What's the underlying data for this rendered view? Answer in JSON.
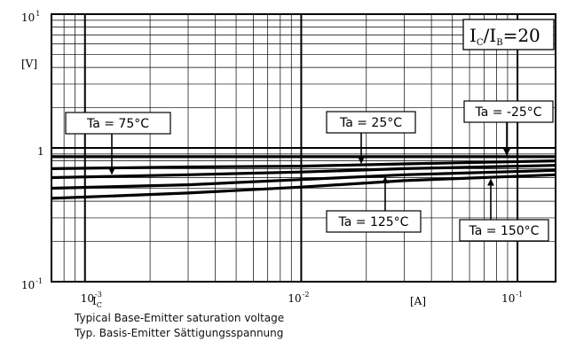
{
  "chart_data": {
    "type": "line",
    "x_scale": "log",
    "y_scale": "log",
    "xlim": [
      0.0007,
      0.15
    ],
    "ylim": [
      0.1,
      10
    ],
    "grid": true,
    "x_ticks": [
      {
        "value": 0.001,
        "base": "10",
        "exp": "-3"
      },
      {
        "value": 0.01,
        "base": "10",
        "exp": "-2"
      },
      {
        "value": 0.1,
        "base": "10",
        "exp": "-1"
      }
    ],
    "y_ticks": [
      {
        "value": 10,
        "base": "10",
        "exp": "1"
      },
      {
        "value": 1,
        "base": "1",
        "exp": ""
      },
      {
        "value": 0.1,
        "base": "10",
        "exp": "-1"
      }
    ],
    "xlabel_symbol": "I",
    "xlabel_sub": "C",
    "xlabel_unit": "[A]",
    "ylabel_unit": "[V]",
    "condition": {
      "a": "I",
      "a_sub": "C",
      "sep": "/",
      "b": "I",
      "b_sub": "B",
      "rest": "=20"
    },
    "series": [
      {
        "name": "Ta = -25°C",
        "x": [
          0.0007,
          0.003,
          0.01,
          0.03,
          0.15
        ],
        "y": [
          0.86,
          0.86,
          0.86,
          0.86,
          0.86
        ]
      },
      {
        "name": "Ta = 25°C",
        "x": [
          0.0007,
          0.003,
          0.01,
          0.03,
          0.15
        ],
        "y": [
          0.7,
          0.72,
          0.73,
          0.76,
          0.8
        ]
      },
      {
        "name": "Ta = 75°C",
        "x": [
          0.0007,
          0.003,
          0.01,
          0.03,
          0.15
        ],
        "y": [
          0.6,
          0.63,
          0.66,
          0.7,
          0.74
        ]
      },
      {
        "name": "Ta = 125°C",
        "x": [
          0.0007,
          0.003,
          0.01,
          0.03,
          0.15
        ],
        "y": [
          0.5,
          0.53,
          0.58,
          0.63,
          0.68
        ]
      },
      {
        "name": "Ta = 150°C",
        "x": [
          0.0007,
          0.003,
          0.01,
          0.03,
          0.15
        ],
        "y": [
          0.42,
          0.46,
          0.51,
          0.57,
          0.63
        ]
      }
    ],
    "annotations": [
      {
        "text": "Ta = 75°C",
        "series": 2
      },
      {
        "text": "Ta = 25°C",
        "series": 1
      },
      {
        "text": "Ta = -25°C",
        "series": 0
      },
      {
        "text": "Ta = 125°C",
        "series": 3
      },
      {
        "text": "Ta = 150°C",
        "series": 4
      }
    ]
  },
  "captions": {
    "line1": "Typical Base-Emitter saturation voltage",
    "line2": "Typ. Basis-Emitter Sättigungsspannung"
  }
}
